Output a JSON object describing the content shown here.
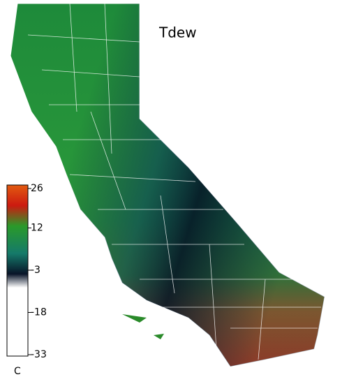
{
  "map_title": "Tdew",
  "legend": {
    "lim": [
      -33,
      26
    ],
    "ticks": [
      26,
      12,
      -3,
      -18,
      -33
    ],
    "unit": "C"
  }
}
